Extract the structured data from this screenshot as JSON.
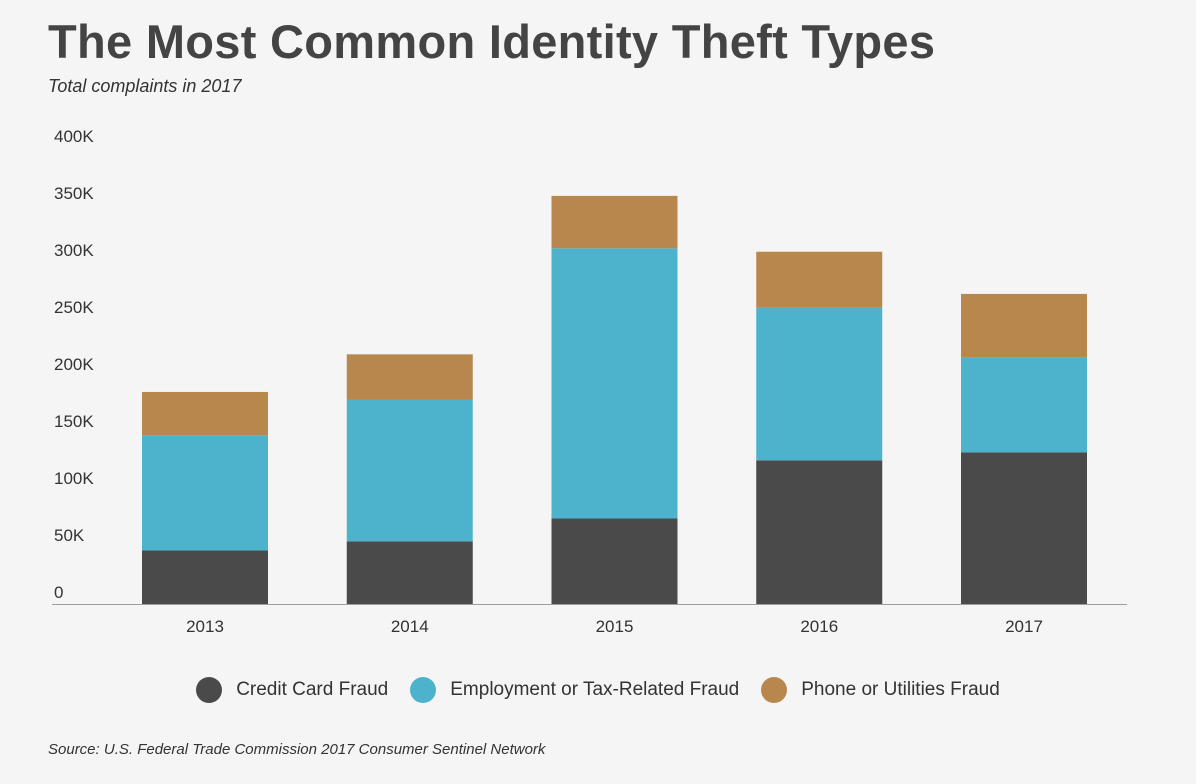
{
  "chart_data": {
    "type": "bar",
    "stacked": true,
    "title": "The Most Common Identity Theft Types",
    "subtitle": "Total complaints in 2017",
    "categories": [
      "2013",
      "2014",
      "2015",
      "2016",
      "2017"
    ],
    "series": [
      {
        "name": "Credit Card Fraud",
        "color": "#4a4a4a",
        "values": [
          47000,
          55000,
          75000,
          126000,
          133000
        ]
      },
      {
        "name": "Employment or Tax-Related Fraud",
        "color": "#4db3cc",
        "values": [
          101000,
          124000,
          237000,
          134000,
          83000
        ]
      },
      {
        "name": "Phone or Utilities Fraud",
        "color": "#b8874e",
        "values": [
          38000,
          40000,
          46000,
          49000,
          56000
        ]
      }
    ],
    "y_ticks": [
      "0",
      "50K",
      "100K",
      "150K",
      "200K",
      "250K",
      "300K",
      "350K",
      "400K"
    ],
    "ylim": [
      0,
      400000
    ],
    "xlabel": "",
    "ylabel": "",
    "grid": false,
    "legend_position": "bottom",
    "source": "Source: U.S. Federal Trade Commission 2017 Consumer Sentinel Network"
  }
}
